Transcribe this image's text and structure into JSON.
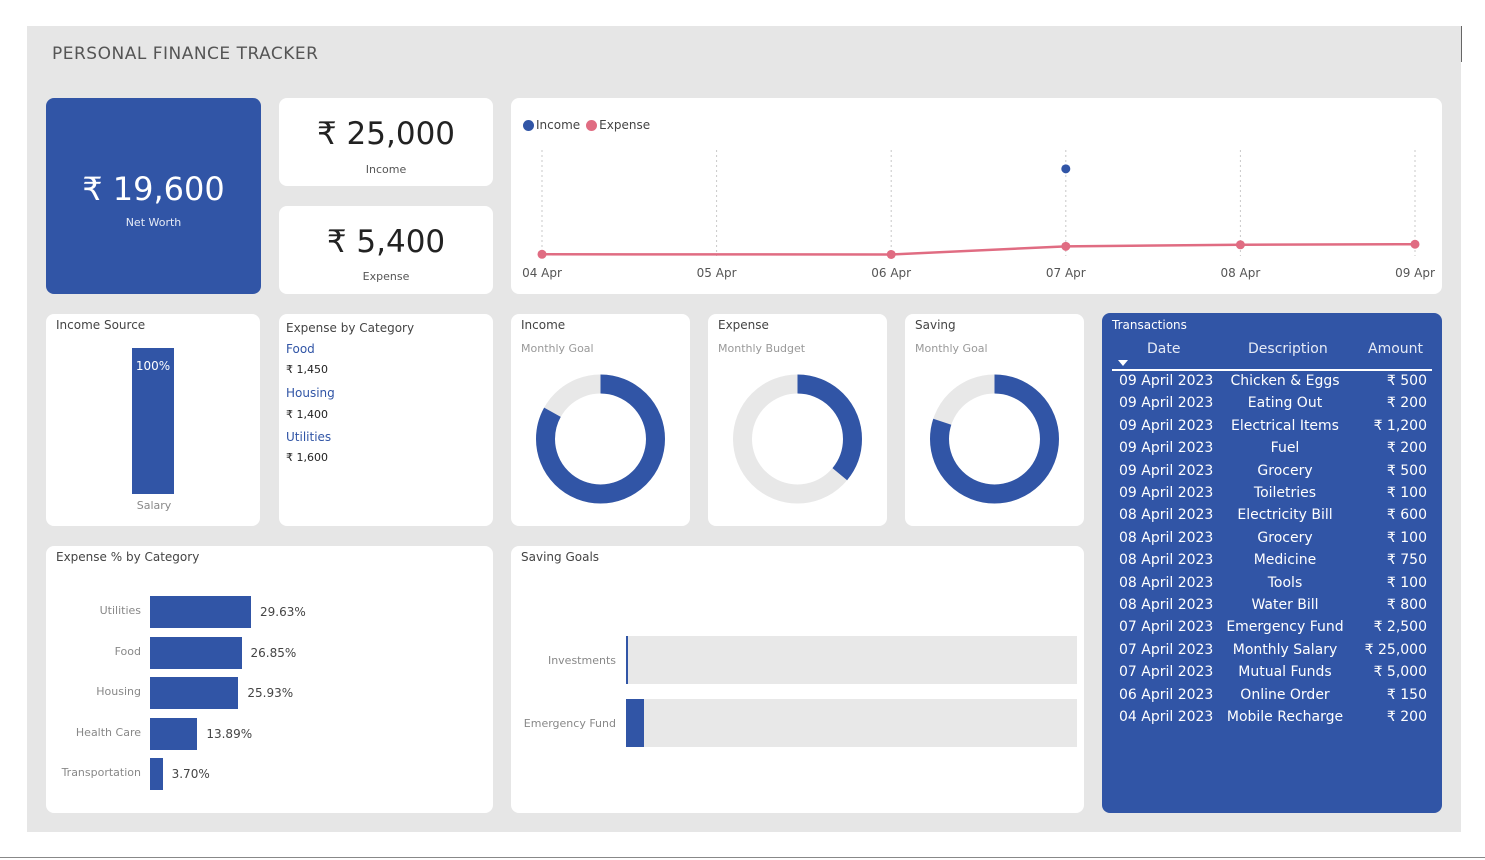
{
  "title": "PERSONAL FINANCE TRACKER",
  "kpis": {
    "net_worth": {
      "value": "₹ 19,600",
      "label": "Net Worth"
    },
    "income": {
      "value": "₹ 25,000",
      "label": "Income"
    },
    "expense": {
      "value": "₹ 5,400",
      "label": "Expense"
    }
  },
  "colors": {
    "accent": "#3155a6",
    "expense_line": "#e06c82",
    "track": "#e8e8e8"
  },
  "line_chart": {
    "legend": [
      "Income",
      "Expense"
    ],
    "chart_data": {
      "type": "line",
      "categories": [
        "04 Apr",
        "05 Apr",
        "06 Apr",
        "07 Apr",
        "08 Apr",
        "09 Apr"
      ],
      "series": [
        {
          "name": "Income",
          "values": [
            null,
            null,
            null,
            25000,
            null,
            null
          ]
        },
        {
          "name": "Expense",
          "values": [
            200,
            null,
            150,
            2500,
            2950,
            3100
          ]
        }
      ],
      "ylim": [
        0,
        30000
      ]
    }
  },
  "income_source": {
    "title": "Income Source",
    "chart_data": {
      "type": "bar",
      "categories": [
        "Salary"
      ],
      "values": [
        100
      ],
      "labels": [
        "100%"
      ]
    }
  },
  "expense_by_category": {
    "title": "Expense by Category",
    "items": [
      {
        "name": "Food",
        "value": "₹ 1,450"
      },
      {
        "name": "Housing",
        "value": "₹ 1,400"
      },
      {
        "name": "Utilities",
        "value": "₹ 1,600"
      }
    ]
  },
  "gauges": [
    {
      "title": "Income",
      "subtitle": "Monthly Goal",
      "fraction": 0.83
    },
    {
      "title": "Expense",
      "subtitle": "Monthly Budget",
      "fraction": 0.36
    },
    {
      "title": "Saving",
      "subtitle": "Monthly Goal",
      "fraction": 0.8
    }
  ],
  "expense_pct": {
    "title": "Expense % by Category",
    "chart_data": {
      "type": "bar",
      "categories": [
        "Utilities",
        "Food",
        "Housing",
        "Health Care",
        "Transportation"
      ],
      "values": [
        29.63,
        26.85,
        25.93,
        13.89,
        3.7
      ],
      "labels": [
        "29.63%",
        "26.85%",
        "25.93%",
        "13.89%",
        "3.70%"
      ]
    }
  },
  "saving_goals": {
    "title": "Saving Goals",
    "chart_data": {
      "type": "bar",
      "categories": [
        "Investments",
        "Emergency Fund"
      ],
      "values": [
        0.004,
        0.04
      ]
    }
  },
  "transactions": {
    "title": "Transactions",
    "columns": [
      "Date",
      "Description",
      "Amount"
    ],
    "rows": [
      [
        "09 April 2023",
        "Chicken & Eggs",
        "₹ 500"
      ],
      [
        "09 April 2023",
        "Eating Out",
        "₹ 200"
      ],
      [
        "09 April 2023",
        "Electrical Items",
        "₹ 1,200"
      ],
      [
        "09 April 2023",
        "Fuel",
        "₹ 200"
      ],
      [
        "09 April 2023",
        "Grocery",
        "₹ 500"
      ],
      [
        "09 April 2023",
        "Toiletries",
        "₹ 100"
      ],
      [
        "08 April 2023",
        "Electricity Bill",
        "₹ 600"
      ],
      [
        "08 April 2023",
        "Grocery",
        "₹ 100"
      ],
      [
        "08 April 2023",
        "Medicine",
        "₹ 750"
      ],
      [
        "08 April 2023",
        "Tools",
        "₹ 100"
      ],
      [
        "08 April 2023",
        "Water Bill",
        "₹ 800"
      ],
      [
        "07 April 2023",
        "Emergency Fund",
        "₹ 2,500"
      ],
      [
        "07 April 2023",
        "Monthly Salary",
        "₹ 25,000"
      ],
      [
        "07 April 2023",
        "Mutual Funds",
        "₹ 5,000"
      ],
      [
        "06 April 2023",
        "Online Order",
        "₹ 150"
      ],
      [
        "04 April 2023",
        "Mobile Recharge",
        "₹ 200"
      ]
    ]
  }
}
